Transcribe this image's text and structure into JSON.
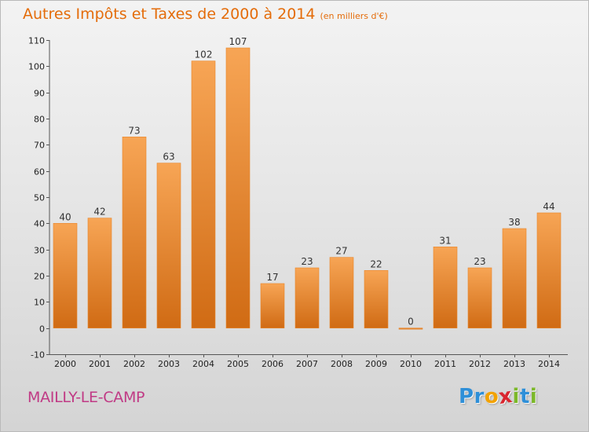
{
  "chart_data": {
    "type": "bar",
    "title": "Autres Impôts et Taxes de 2000 à 2014",
    "subtitle": "(en milliers d'€)",
    "categories": [
      "2000",
      "2001",
      "2002",
      "2003",
      "2004",
      "2005",
      "2006",
      "2007",
      "2008",
      "2009",
      "2010",
      "2011",
      "2012",
      "2013",
      "2014"
    ],
    "values": [
      40,
      42,
      73,
      63,
      102,
      107,
      17,
      23,
      27,
      22,
      0,
      31,
      23,
      38,
      44
    ],
    "ylim": [
      -10,
      110
    ],
    "yticks": [
      -10,
      0,
      10,
      20,
      30,
      40,
      50,
      60,
      70,
      80,
      90,
      100,
      110
    ],
    "xlabel": "",
    "ylabel": "",
    "grid": false,
    "bar_color": "#e8852a",
    "data_labels": true
  },
  "footer": {
    "commune": "MAILLY-LE-CAMP",
    "logo_letters": [
      {
        "ch": "P",
        "color": "#2e8fd8"
      },
      {
        "ch": "r",
        "color": "#2e8fd8"
      },
      {
        "ch": "o",
        "color": "#f2a200"
      },
      {
        "ch": "x",
        "color": "#d9262f"
      },
      {
        "ch": "i",
        "color": "#7cb829"
      },
      {
        "ch": "t",
        "color": "#2e8fd8"
      },
      {
        "ch": "i",
        "color": "#7cb829"
      }
    ]
  },
  "colors": {
    "title": "#e46c0a",
    "commune": "#c03a85",
    "axis_text": "#222222"
  }
}
